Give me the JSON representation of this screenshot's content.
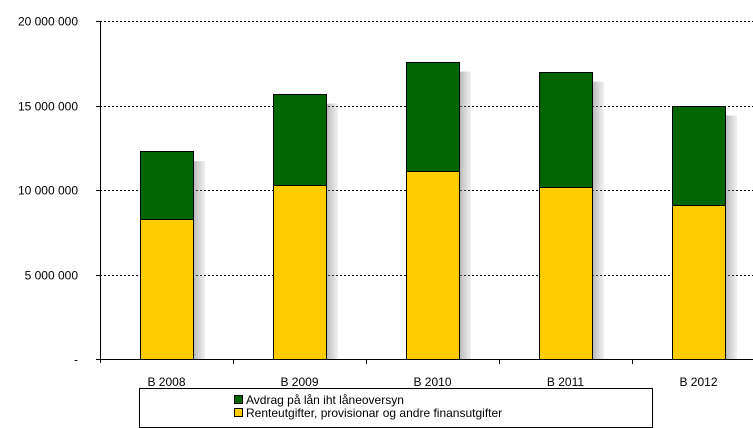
{
  "chart_data": {
    "type": "bar",
    "stacked": true,
    "categories": [
      "B 2008",
      "B 2009",
      "B 2010",
      "B 2011",
      "B 2012"
    ],
    "series": [
      {
        "name": "Renteutgifter, provisionar og andre finansutgifter",
        "color": "#FFCC00",
        "values": [
          8300000,
          10300000,
          11100000,
          10200000,
          9100000
        ]
      },
      {
        "name": "Avdrag på lån iht låneoversyn",
        "color": "#006600",
        "values": [
          4000000,
          5400000,
          6500000,
          6800000,
          5900000
        ]
      }
    ],
    "ylim": [
      0,
      20000000
    ],
    "yticks": [
      0,
      5000000,
      10000000,
      15000000,
      20000000
    ],
    "ytick_labels": [
      "-",
      "5 000 000",
      "10 000 000",
      "15 000 000",
      "20 000 000"
    ],
    "grid": true,
    "legend_position": "bottom",
    "title": "",
    "xlabel": "",
    "ylabel": ""
  }
}
